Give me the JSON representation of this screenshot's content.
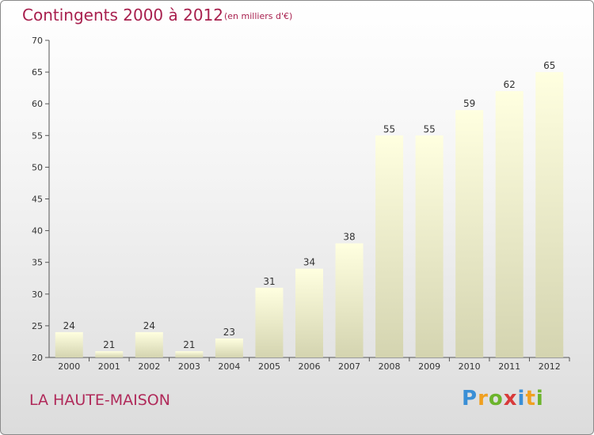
{
  "chart_data": {
    "type": "bar",
    "title": "Contingents 2000 à 2012",
    "unit": "(en milliers d'€)",
    "categories": [
      "2000",
      "2001",
      "2002",
      "2003",
      "2004",
      "2005",
      "2006",
      "2007",
      "2008",
      "2009",
      "2010",
      "2011",
      "2012"
    ],
    "values": [
      24,
      21,
      24,
      21,
      23,
      31,
      34,
      38,
      55,
      55,
      59,
      62,
      65
    ],
    "ylim": [
      20,
      70
    ],
    "yticks": [
      20,
      25,
      30,
      35,
      40,
      45,
      50,
      55,
      60,
      65,
      70
    ],
    "grid": false,
    "bar_color_top": "#ffffe0",
    "bar_color_bottom": "#d4d4b0"
  },
  "commune": "LA HAUTE-MAISON",
  "logo": {
    "letters": [
      "P",
      "r",
      "o",
      "x",
      "i",
      "t",
      "i"
    ],
    "colors": [
      "#3a8fd6",
      "#f0a020",
      "#6cb42c",
      "#d83a3a",
      "#3a8fd6",
      "#f0a020",
      "#6cb42c"
    ]
  }
}
